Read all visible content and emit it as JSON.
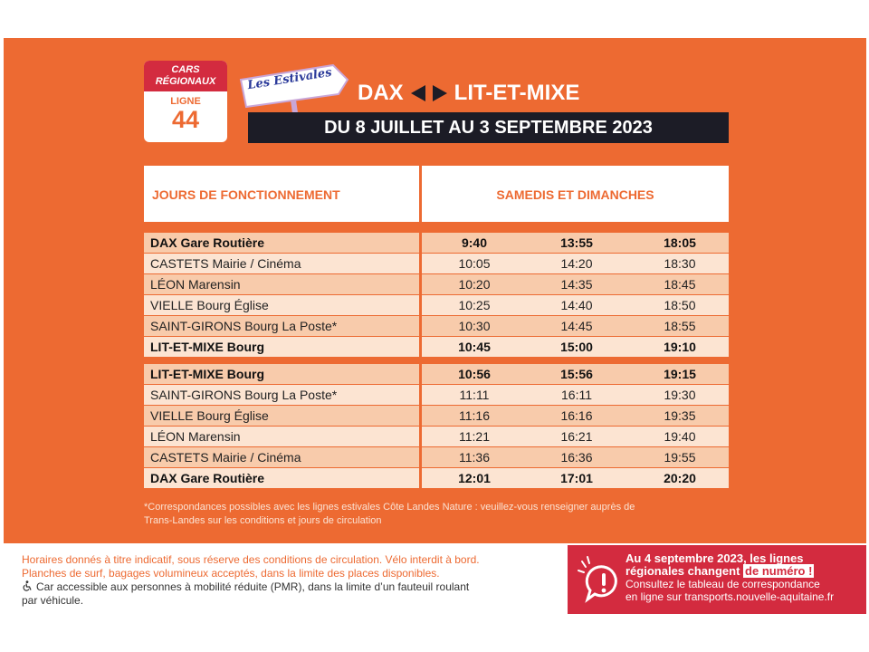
{
  "badge": {
    "line1": "CARS",
    "line2": "RÉGIONAUX",
    "ligne_label": "LIGNE",
    "ligne_number": "44"
  },
  "sign": {
    "label": "Les Estivales"
  },
  "route": {
    "from": "DAX",
    "to": "LIT-ET-MIXE"
  },
  "period": "DU 8 JUILLET AU 3 SEPTEMBRE 2023",
  "table": {
    "header_left": "JOURS DE FONCTIONNEMENT",
    "header_right": "SAMEDIS ET DIMANCHES",
    "outbound": [
      {
        "stop": "DAX Gare Routière",
        "times": [
          "9:40",
          "13:55",
          "18:05"
        ]
      },
      {
        "stop": "CASTETS Mairie / Cinéma",
        "times": [
          "10:05",
          "14:20",
          "18:30"
        ]
      },
      {
        "stop": "LÉON Marensin",
        "times": [
          "10:20",
          "14:35",
          "18:45"
        ]
      },
      {
        "stop": "VIELLE Bourg Église",
        "times": [
          "10:25",
          "14:40",
          "18:50"
        ]
      },
      {
        "stop": "SAINT-GIRONS Bourg La Poste*",
        "times": [
          "10:30",
          "14:45",
          "18:55"
        ]
      },
      {
        "stop": "LIT-ET-MIXE Bourg",
        "times": [
          "10:45",
          "15:00",
          "19:10"
        ]
      }
    ],
    "return": [
      {
        "stop": "LIT-ET-MIXE Bourg",
        "times": [
          "10:56",
          "15:56",
          "19:15"
        ]
      },
      {
        "stop": "SAINT-GIRONS Bourg La Poste*",
        "times": [
          "11:11",
          "16:11",
          "19:30"
        ]
      },
      {
        "stop": "VIELLE Bourg Église",
        "times": [
          "11:16",
          "16:16",
          "19:35"
        ]
      },
      {
        "stop": "LÉON Marensin",
        "times": [
          "11:21",
          "16:21",
          "19:40"
        ]
      },
      {
        "stop": "CASTETS Mairie / Cinéma",
        "times": [
          "11:36",
          "16:36",
          "19:55"
        ]
      },
      {
        "stop": "DAX Gare Routière",
        "times": [
          "12:01",
          "17:01",
          "20:20"
        ]
      }
    ]
  },
  "footnote": {
    "line1": "*Correspondances possibles avec les lignes estivales Côte Landes Nature : veuillez-vous renseigner auprès de",
    "line2": "Trans-Landes sur les conditions et jours de circulation"
  },
  "info": {
    "line1": "Horaires donnés à titre indicatif, sous réserve des conditions de circulation. Vélo interdit à bord.",
    "line2": "Planches de surf, bagages volumineux acceptés, dans la limite des places disponibles.",
    "pmr1": "Car accessible aux personnes à mobilité réduite (PMR), dans la limite d’un fauteuil roulant",
    "pmr2": "par véhicule."
  },
  "alert": {
    "bold1": "Au 4 septembre 2023, les lignes",
    "bold2": "régionales changent",
    "highlight": "de numéro !",
    "line3": "Consultez le tableau de correspondance",
    "line4": "en ligne sur transports.nouvelle-aquitaine.fr"
  },
  "colors": {
    "orange": "#ed6a32",
    "red": "#d32b3f",
    "dark": "#1c1c26",
    "row_light": "#fce4d2",
    "row_dark": "#f8cbab"
  }
}
